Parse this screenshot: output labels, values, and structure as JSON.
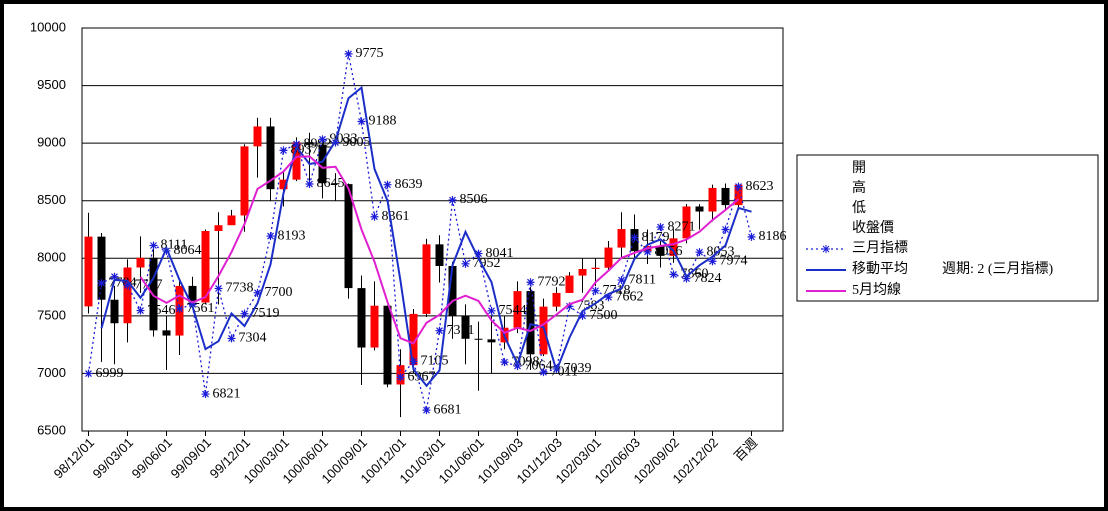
{
  "chart_data": {
    "type": "candlestick",
    "categories": [
      "98/12/01",
      null,
      null,
      "99/03/01",
      null,
      null,
      "99/06/01",
      null,
      null,
      "99/09/01",
      null,
      null,
      "99/12/01",
      null,
      null,
      "100/03/01",
      null,
      null,
      "100/06/01",
      null,
      null,
      "100/09/01",
      null,
      null,
      "100/12/01",
      null,
      null,
      "101/03/01",
      null,
      null,
      "101/06/01",
      null,
      null,
      "101/09/03",
      null,
      null,
      "101/12/03",
      null,
      null,
      "102/03/01",
      null,
      null,
      "102/06/03",
      null,
      null,
      "102/09/02",
      null,
      null,
      "102/12/02",
      null,
      null,
      "百週"
    ],
    "legend_labels": {
      "open": "開",
      "high": "高",
      "low": "低",
      "close": "收盤價"
    },
    "up_color": "#ff0000",
    "down_color": "#000000",
    "open": [
      7582,
      8188,
      7640,
      7436,
      7920,
      8004,
      7374,
      7329,
      7760,
      7616,
      8237,
      8287,
      8372,
      8972,
      9145,
      8600,
      8683,
      9008,
      8988,
      8652,
      8644,
      7741,
      7225,
      7588,
      6904,
      7072,
      7517,
      8121,
      7933,
      7501,
      7301,
      7296,
      7270,
      7397,
      7715,
      7166,
      7580,
      7699,
      7850,
      7907,
      7918,
      8093,
      8254,
      8062,
      8107,
      8021,
      8173,
      8450,
      8406,
      8611,
      8462,
      null
    ],
    "high": [
      8395,
      8220,
      7760,
      7990,
      8190,
      8100,
      7500,
      7800,
      7840,
      8250,
      8400,
      8420,
      8990,
      9220,
      9220,
      8750,
      9050,
      9090,
      9000,
      8740,
      8650,
      7850,
      7800,
      7590,
      7210,
      7560,
      8170,
      8200,
      7970,
      7600,
      7450,
      7500,
      7500,
      7800,
      7750,
      7650,
      7750,
      7880,
      8000,
      8000,
      8150,
      8400,
      8380,
      8250,
      8150,
      8250,
      8470,
      8470,
      8640,
      8650,
      8650,
      null
    ],
    "low": [
      7520,
      7100,
      7080,
      7270,
      7700,
      7320,
      7030,
      7160,
      7580,
      7600,
      7600,
      8290,
      8230,
      8700,
      8500,
      8450,
      8670,
      8680,
      8520,
      8500,
      7650,
      6900,
      7200,
      6880,
      6620,
      7000,
      7490,
      7790,
      7300,
      7080,
      6850,
      7000,
      7210,
      7350,
      7030,
      7150,
      7540,
      7700,
      7700,
      7760,
      7900,
      8000,
      7990,
      7950,
      7920,
      7960,
      8130,
      8250,
      8320,
      8420,
      8440,
      null
    ],
    "close": [
      8188,
      7640,
      7436,
      7920,
      8004,
      7374,
      7329,
      7760,
      7616,
      8237,
      8287,
      8372,
      8972,
      9145,
      8600,
      8683,
      9008,
      8988,
      8652,
      8644,
      7741,
      7225,
      7588,
      6904,
      7072,
      7517,
      8121,
      7933,
      7501,
      7301,
      7296,
      7270,
      7397,
      7715,
      7166,
      7580,
      7699,
      7850,
      7907,
      7918,
      8093,
      8254,
      8062,
      8107,
      8021,
      8173,
      8450,
      8406,
      8611,
      8462,
      8639,
      null
    ],
    "series": [
      {
        "name": "三月指標",
        "color": "#1c1cd8",
        "style": "dotted",
        "values": [
          6999,
          7784,
          7840,
          7767,
          7546,
          8111,
          8064,
          7561,
          7600,
          6821,
          7738,
          7304,
          7519,
          7700,
          8193,
          8937,
          8992,
          8645,
          9033,
          9005,
          9775,
          9188,
          8361,
          8639,
          6967,
          7105,
          6681,
          7371,
          8506,
          7952,
          8041,
          7544,
          7098,
          7064,
          7792,
          7011,
          7039,
          7583,
          7500,
          7718,
          7662,
          7811,
          8179,
          8056,
          8271,
          7860,
          7824,
          8053,
          7974,
          8250,
          8623,
          8186
        ],
        "value_labels": [
          "6999",
          "7784",
          null,
          "7767",
          "7546",
          "8111",
          "8064",
          "7561",
          null,
          "6821",
          "7738",
          "7304",
          "7519",
          "7700",
          "8193",
          "8937",
          "8992",
          "8645",
          "9033",
          "9005",
          "9775",
          "9188",
          "8361",
          "8639",
          "6967",
          "7105",
          "6681",
          "7371",
          "8506",
          "7952",
          "8041",
          "7544",
          "7098",
          "7064",
          "7792",
          "7011",
          "7039",
          "7583",
          "7500",
          "7718",
          "7662",
          "7811",
          "8179",
          "8056",
          "8271",
          "7860",
          "7824",
          "8053",
          "7974",
          null,
          "8623",
          "8186"
        ]
      },
      {
        "name": "移動平均",
        "period_label": "週期: 2 (三月指標)",
        "color": "#1c2ec8",
        "style": "solid",
        "values": [
          null,
          7392,
          7812,
          7804,
          7657,
          7829,
          8088,
          7813,
          7581,
          7211,
          7280,
          7521,
          7412,
          7610,
          7947,
          8565,
          8965,
          8819,
          8839,
          9019,
          9390,
          9482,
          8775,
          8500,
          7803,
          7036,
          6893,
          7026,
          7939,
          8229,
          7997,
          7793,
          7321,
          7081,
          7428,
          7402,
          7025,
          7311,
          7542,
          7609,
          7690,
          7737,
          7995,
          8118,
          8164,
          8066,
          7842,
          7939,
          8014,
          8112,
          8437,
          8405
        ]
      },
      {
        "name": "5月均線",
        "color": "#e020d0",
        "style": "solid",
        "values": [
          null,
          null,
          null,
          null,
          7838,
          7675,
          7613,
          7677,
          7617,
          7663,
          7846,
          8054,
          8297,
          8603,
          8675,
          8754,
          8882,
          8885,
          8786,
          8795,
          8607,
          8250,
          7970,
          7620,
          7306,
          7261,
          7440,
          7509,
          7629,
          7675,
          7630,
          7460,
          7353,
          7396,
          7369,
          7426,
          7511,
          7602,
          7640,
          7791,
          7893,
          8004,
          8047,
          8087,
          8107,
          8123,
          8163,
          8231,
          8332,
          8420,
          8514,
          null
        ]
      }
    ],
    "ylim": [
      6500,
      10000
    ],
    "yticks": [
      6500,
      7000,
      7500,
      8000,
      8500,
      9000,
      9500,
      10000
    ],
    "grid": true
  }
}
